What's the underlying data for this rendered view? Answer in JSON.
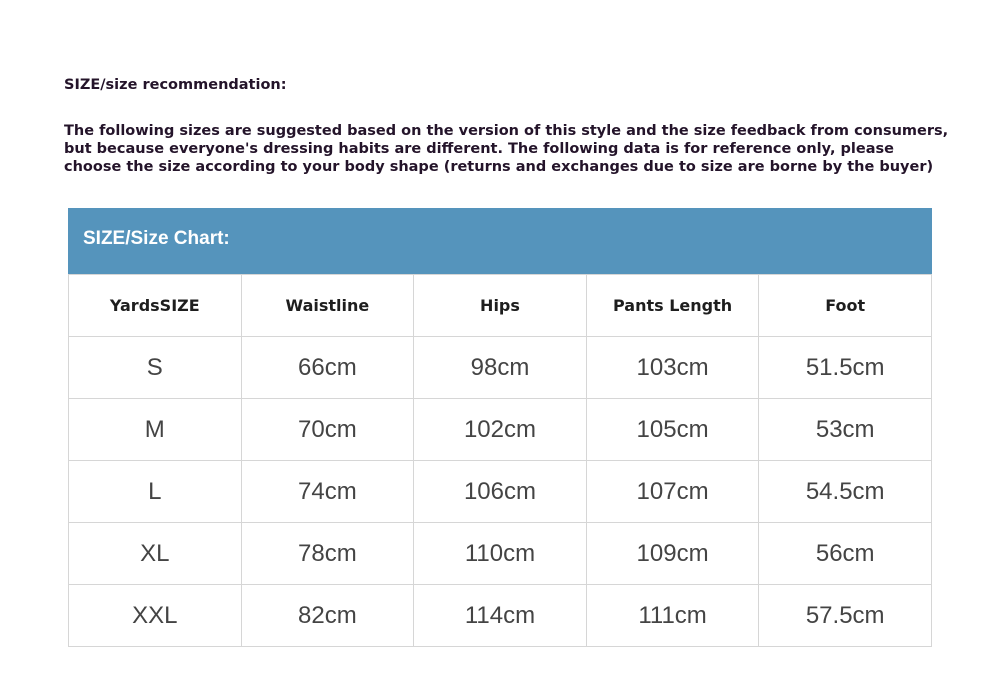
{
  "title": "SIZE/size recommendation:",
  "paragraph": [
    "The following sizes are suggested based on the version of this style and the size feedback from consumers,",
    "but because everyone's dressing habits are different. The following data is for reference only, please",
    "choose the size according to your body shape (returns and exchanges due to size are borne by the buyer)"
  ],
  "chart_title": "SIZE/Size Chart:",
  "accent_color": "#5594bc",
  "headers": [
    "YardsSIZE",
    "Waistline",
    "Hips",
    "Pants Length",
    "Foot"
  ],
  "rows": [
    [
      "S",
      "66cm",
      "98cm",
      "103cm",
      "51.5cm"
    ],
    [
      "M",
      "70cm",
      "102cm",
      "105cm",
      "53cm"
    ],
    [
      "L",
      "74cm",
      "106cm",
      "107cm",
      "54.5cm"
    ],
    [
      "XL",
      "78cm",
      "110cm",
      "109cm",
      "56cm"
    ],
    [
      "XXL",
      "82cm",
      "114cm",
      "111cm",
      "57.5cm"
    ]
  ]
}
